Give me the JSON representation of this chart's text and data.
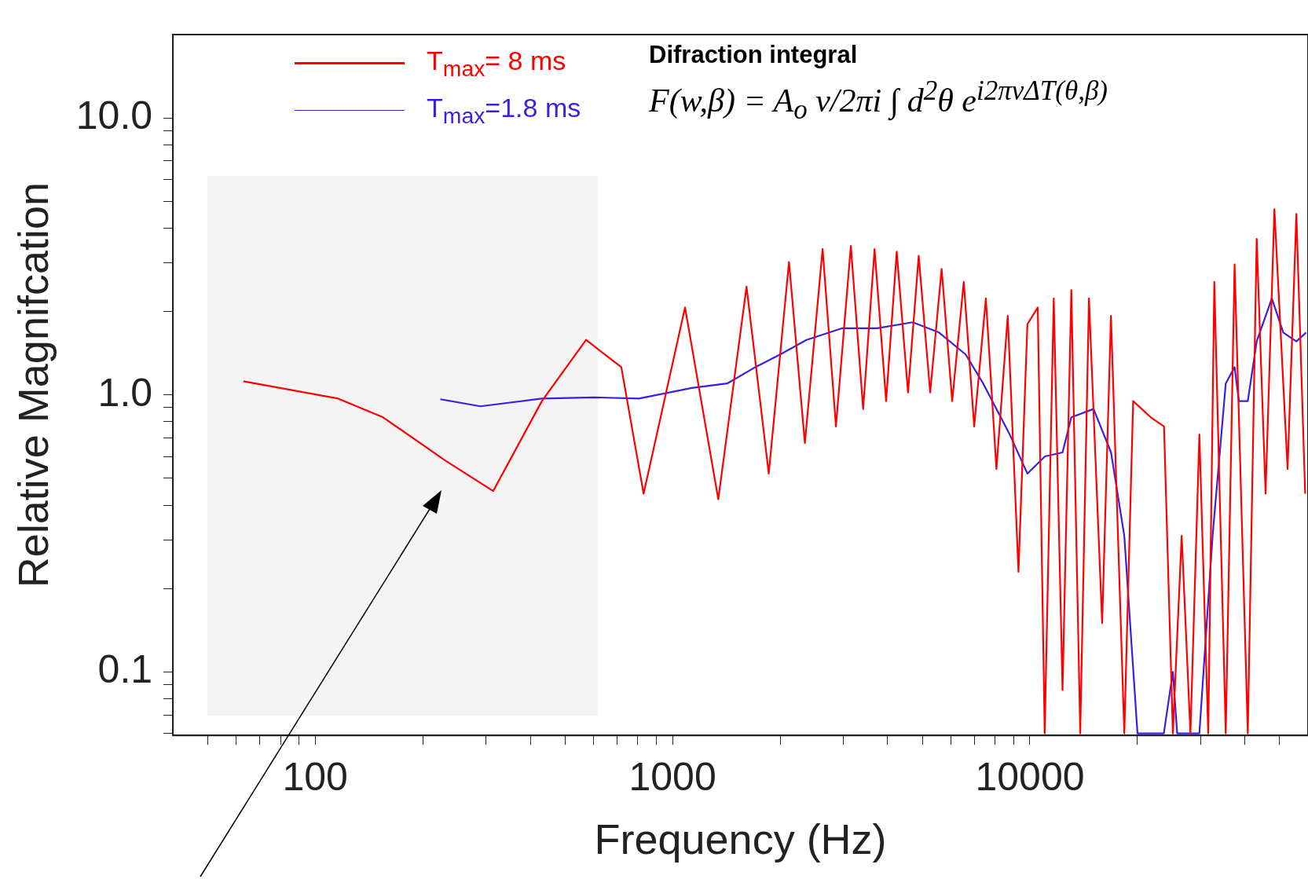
{
  "chart_data": {
    "type": "line",
    "xlabel": "Frequency (Hz)",
    "ylabel": "Relative Magnifcation",
    "log": "xy",
    "grid": false,
    "legend": "top left",
    "marker": "none",
    "line_style": "solid",
    "xlim": [
      40,
      60000
    ],
    "ylim": [
      0.059,
      20
    ],
    "xticks": [
      {
        "value": 50,
        "label": null
      },
      {
        "value": 60,
        "label": null
      },
      {
        "value": 70,
        "label": null
      },
      {
        "value": 80,
        "label": null
      },
      {
        "value": 90,
        "label": null
      },
      100,
      {
        "value": 200,
        "label": null
      },
      {
        "value": 300,
        "label": null
      },
      {
        "value": 400,
        "label": null
      },
      {
        "value": 500,
        "label": null
      },
      {
        "value": 600,
        "label": null
      },
      {
        "value": 700,
        "label": null
      },
      {
        "value": 800,
        "label": null
      },
      {
        "value": 900,
        "label": null
      },
      1000,
      {
        "value": 2000,
        "label": null
      },
      {
        "value": 3000,
        "label": null
      },
      {
        "value": 4000,
        "label": null
      },
      {
        "value": 5000,
        "label": null
      },
      {
        "value": 6000,
        "label": null
      },
      {
        "value": 7000,
        "label": null
      },
      {
        "value": 8000,
        "label": null
      },
      {
        "value": 9000,
        "label": null
      },
      10000,
      {
        "value": 20000,
        "label": null
      },
      {
        "value": 30000,
        "label": null
      },
      {
        "value": 40000,
        "label": null
      },
      {
        "value": 50000,
        "label": null
      }
    ],
    "yticks": [
      {
        "value": 0.06,
        "label": null
      },
      {
        "value": 0.07,
        "label": null
      },
      {
        "value": 0.08,
        "label": null
      },
      {
        "value": 0.09,
        "label": null
      },
      0.1,
      {
        "value": 0.2,
        "label": null
      },
      {
        "value": 0.3,
        "label": null
      },
      {
        "value": 0.4,
        "label": null
      },
      {
        "value": 0.5,
        "label": null
      },
      {
        "value": 0.6,
        "label": null
      },
      {
        "value": 0.7,
        "label": null
      },
      {
        "value": 0.8,
        "label": null
      },
      {
        "value": 0.9,
        "label": null
      },
      {
        "value": 1,
        "label": "1.0"
      },
      {
        "value": 2,
        "label": null
      },
      {
        "value": 3,
        "label": null
      },
      {
        "value": 4,
        "label": null
      },
      {
        "value": 5,
        "label": null
      },
      {
        "value": 6,
        "label": null
      },
      {
        "value": 7,
        "label": null
      },
      {
        "value": 8,
        "label": null
      },
      {
        "value": 9,
        "label": null
      },
      {
        "value": 10,
        "label": "10.0"
      }
    ],
    "bands": [
      {
        "axis": "x",
        "from": 50,
        "to": 617,
        "color": "#f4f4f4"
      }
    ],
    "annotations": [
      "Difraction integral",
      "F(w,β) = A$_{o}$ ν/2πi ∫ d$^{2}$θ e$^{i2πνΔT(θ,β)}$"
    ],
    "series": [
      {
        "name": "T$_{max}$= 8 ms",
        "color": "#ff0000",
        "x": [
          63,
          116,
          155,
          231,
          315,
          431,
          573,
          719,
          830,
          1084,
          1343,
          1611,
          1859,
          2118,
          2346,
          2630,
          2866,
          3155,
          3415,
          3676,
          3960,
          4240,
          4560,
          4885,
          5260,
          5662,
          6062,
          6530,
          6985,
          7530,
          8060,
          8670,
          9290,
          9840,
          10520,
          11000,
          11660,
          12340,
          13060,
          13830,
          14630,
          15930,
          16860,
          18370,
          19450,
          21790,
          23730,
          25120,
          26590,
          28130,
          29800,
          31550,
          32810,
          35320,
          37390,
          40710,
          43110,
          45650,
          48320,
          52610,
          55670,
          58920
        ],
        "values": [
          1.12,
          0.97,
          0.83,
          0.58,
          0.45,
          0.95,
          1.58,
          1.26,
          0.44,
          2.07,
          0.42,
          2.46,
          0.52,
          3.02,
          0.67,
          3.36,
          0.77,
          3.45,
          0.89,
          3.36,
          0.95,
          3.29,
          1.02,
          3.18,
          1.02,
          2.85,
          0.95,
          2.56,
          0.77,
          2.23,
          0.54,
          1.93,
          0.23,
          1.8,
          2.07,
          0.06,
          2.23,
          0.086,
          2.39,
          0.06,
          2.23,
          0.15,
          1.93,
          0.06,
          0.95,
          0.83,
          0.77,
          0.06,
          0.31,
          0.06,
          0.72,
          0.06,
          2.56,
          0.06,
          2.96,
          0.06,
          3.66,
          0.44,
          4.68,
          0.54,
          4.5,
          0.44
        ]
      },
      {
        "name": "T$_{max}$=1.8 ms",
        "color": "#3a1fe0",
        "x": [
          224,
          290,
          431,
          607,
          805,
          1133,
          1422,
          1687,
          2001,
          2371,
          2977,
          3739,
          4700,
          5570,
          6610,
          7400,
          8780,
          9840,
          11020,
          12340,
          13060,
          15070,
          16870,
          18370,
          20000,
          23700,
          25120,
          25830,
          29800,
          32450,
          35320,
          37390,
          38450,
          40710,
          43110,
          47530,
          51170,
          55670,
          59280
        ],
        "values": [
          0.965,
          0.91,
          0.97,
          0.98,
          0.97,
          1.06,
          1.1,
          1.25,
          1.4,
          1.58,
          1.74,
          1.74,
          1.83,
          1.68,
          1.4,
          1.1,
          0.72,
          0.52,
          0.6,
          0.62,
          0.83,
          0.89,
          0.62,
          0.31,
          0.06,
          0.06,
          0.1,
          0.06,
          0.06,
          0.31,
          1.1,
          1.26,
          0.95,
          0.95,
          1.56,
          2.23,
          1.68,
          1.56,
          1.68
        ]
      }
    ]
  }
}
